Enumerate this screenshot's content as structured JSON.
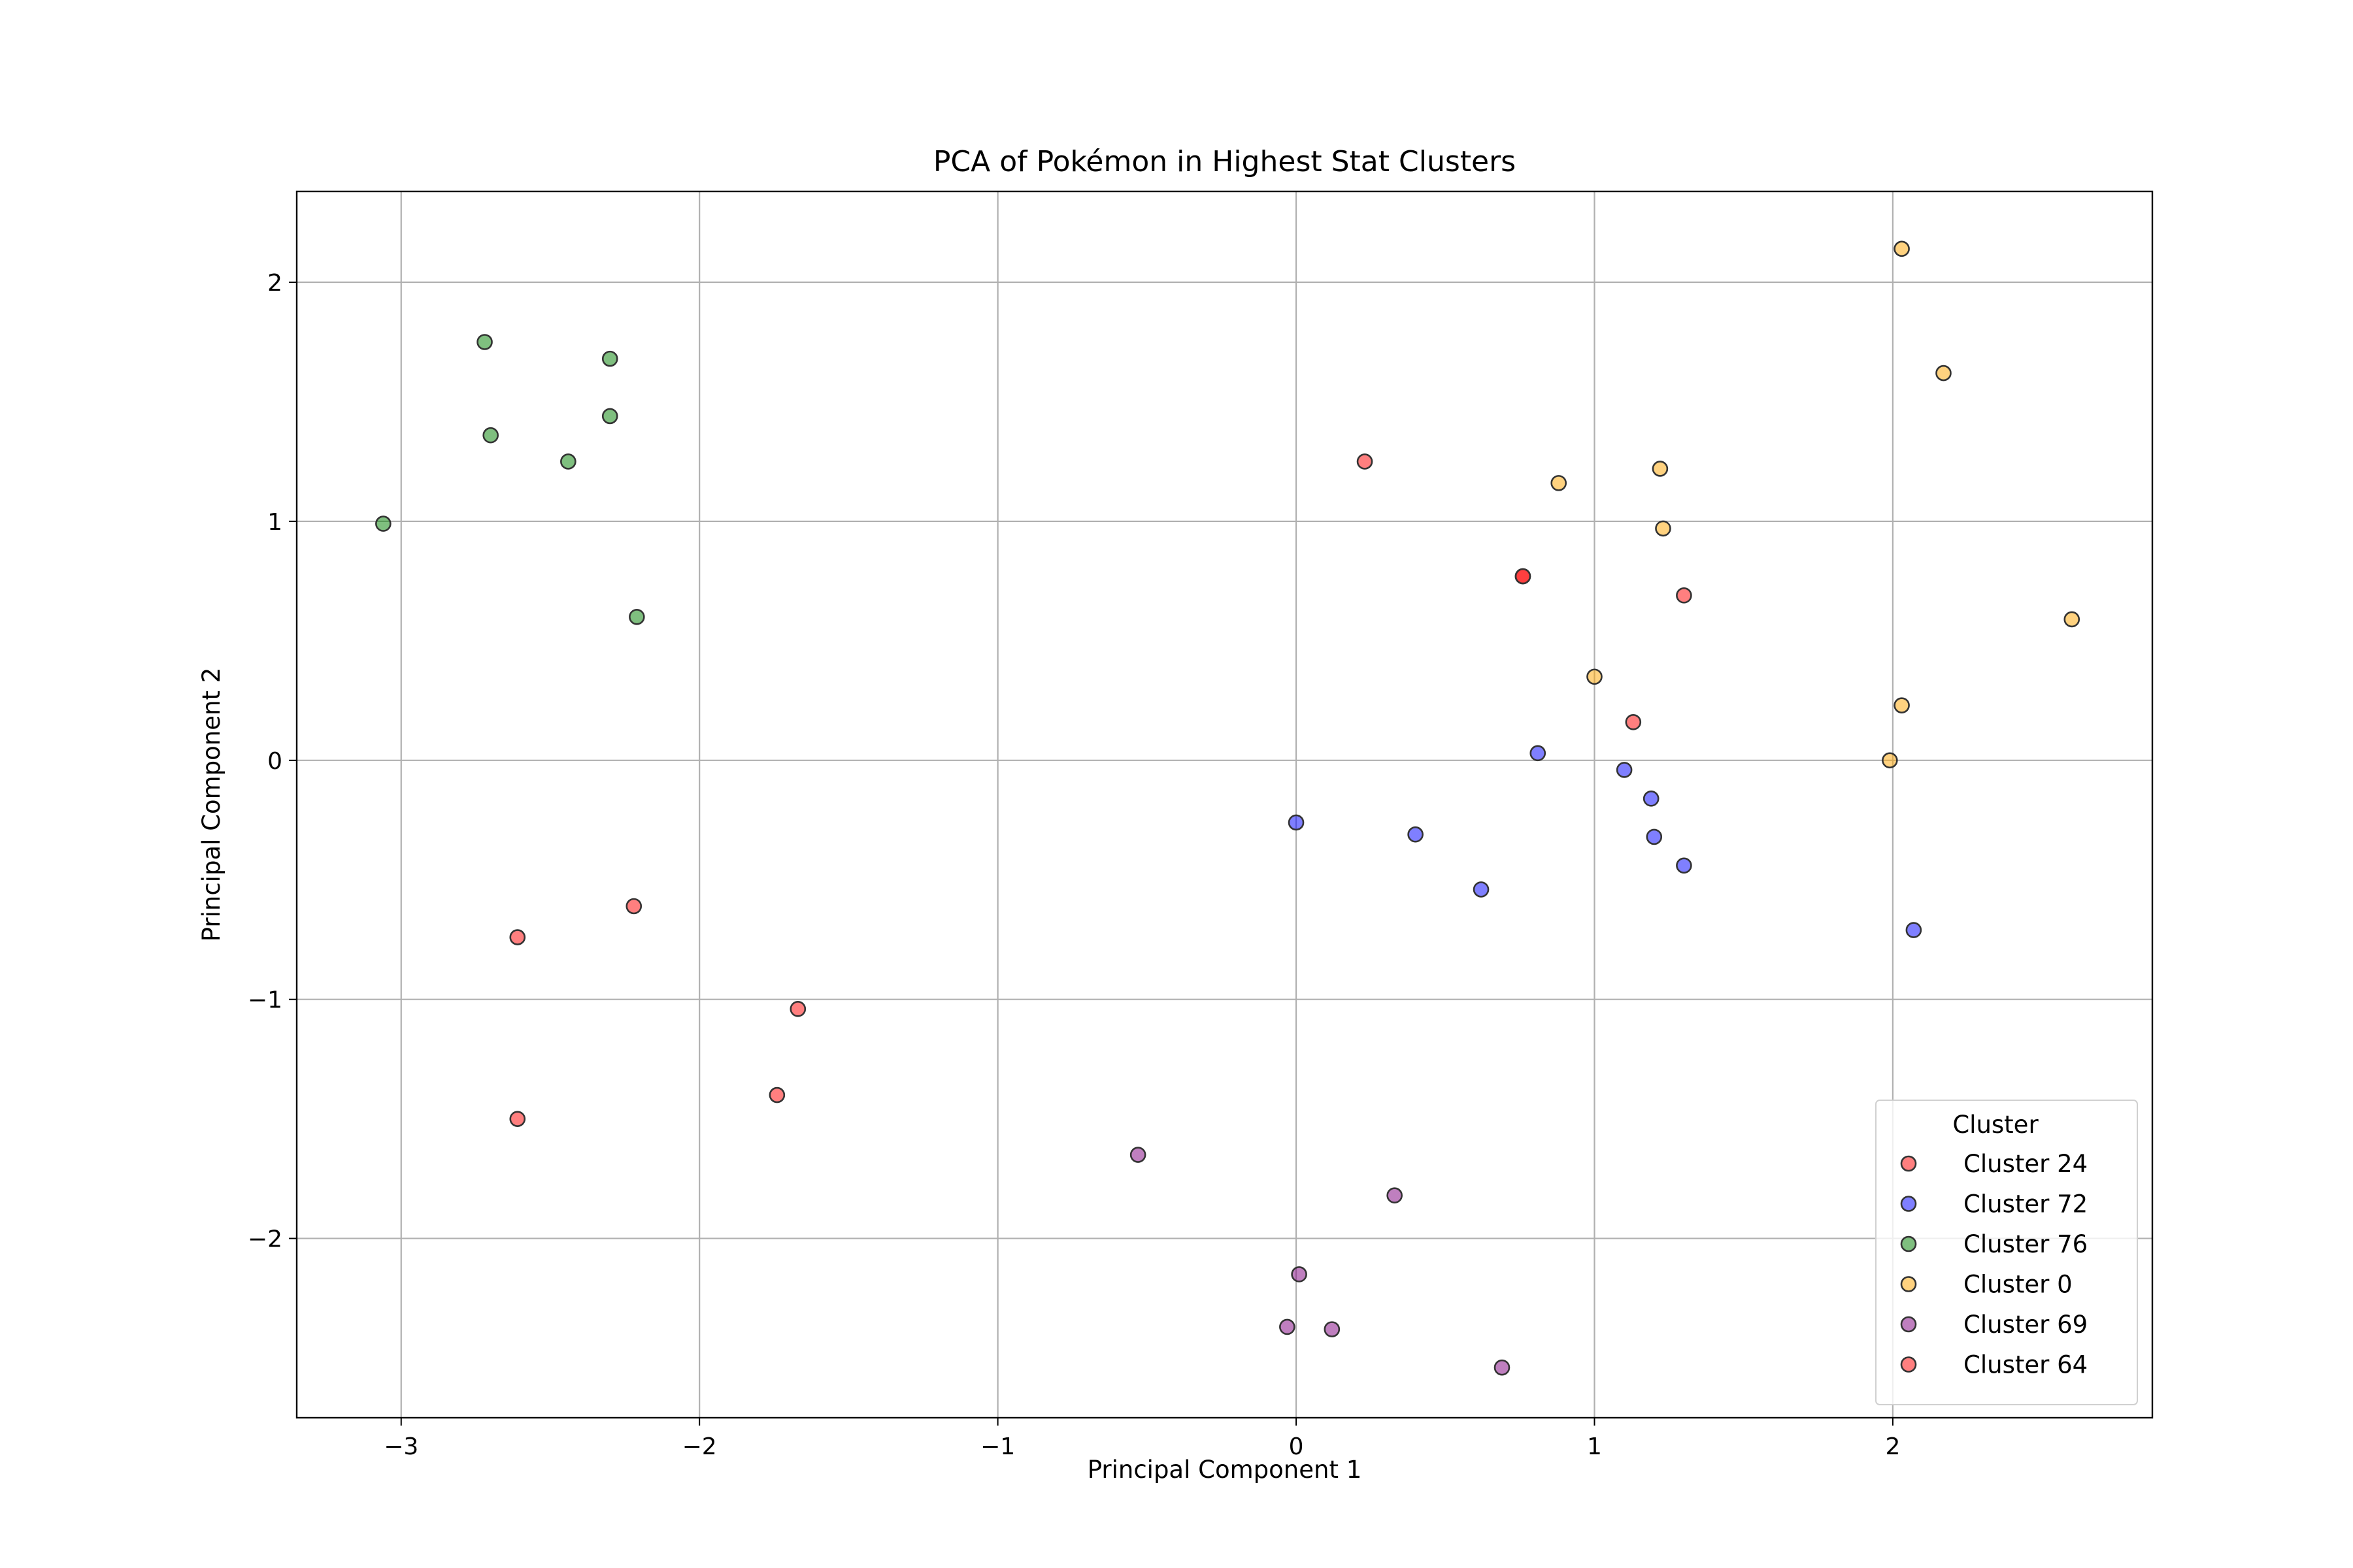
{
  "chart_data": {
    "type": "scatter",
    "title": "PCA of Pokémon in Highest Stat Clusters",
    "xlabel": "Principal Component 1",
    "ylabel": "Principal Component 2",
    "xlim": [
      -3.35,
      2.87
    ],
    "ylim": [
      -2.75,
      2.38
    ],
    "xticks": [
      -3,
      -2,
      -1,
      0,
      1,
      2
    ],
    "yticks": [
      -2,
      -1,
      0,
      1,
      2
    ],
    "xtick_labels": [
      "−3",
      "−2",
      "−1",
      "0",
      "1",
      "2"
    ],
    "ytick_labels": [
      "−2",
      "−1",
      "0",
      "1",
      "2"
    ],
    "grid": true,
    "legend": {
      "title": "Cluster",
      "placement": "lower-right"
    },
    "series": [
      {
        "name": "Cluster 24",
        "color": "#ff0000",
        "opacity": 0.5,
        "points": [
          [
            0.23,
            1.25
          ],
          [
            1.3,
            0.69
          ],
          [
            1.13,
            0.16
          ],
          [
            -2.22,
            -0.61
          ],
          [
            -2.61,
            -0.74
          ],
          [
            -1.67,
            -1.04
          ],
          [
            -1.74,
            -1.4
          ],
          [
            -2.61,
            -1.5
          ],
          [
            0.76,
            0.77
          ]
        ]
      },
      {
        "name": "Cluster 72",
        "color": "#0000ff",
        "opacity": 0.5,
        "points": [
          [
            0.81,
            0.03
          ],
          [
            1.1,
            -0.04
          ],
          [
            1.19,
            -0.16
          ],
          [
            1.2,
            -0.32
          ],
          [
            1.3,
            -0.44
          ],
          [
            0.0,
            -0.26
          ],
          [
            0.4,
            -0.31
          ],
          [
            0.62,
            -0.54
          ],
          [
            2.07,
            -0.71
          ]
        ]
      },
      {
        "name": "Cluster 76",
        "color": "#008000",
        "opacity": 0.5,
        "points": [
          [
            -2.72,
            1.75
          ],
          [
            -2.3,
            1.68
          ],
          [
            -2.3,
            1.44
          ],
          [
            -2.7,
            1.36
          ],
          [
            -2.44,
            1.25
          ],
          [
            -3.06,
            0.99
          ],
          [
            -2.21,
            0.6
          ]
        ]
      },
      {
        "name": "Cluster 0",
        "color": "#ffa500",
        "opacity": 0.5,
        "points": [
          [
            2.03,
            2.14
          ],
          [
            2.17,
            1.62
          ],
          [
            1.22,
            1.22
          ],
          [
            0.88,
            1.16
          ],
          [
            1.23,
            0.97
          ],
          [
            2.6,
            0.59
          ],
          [
            1.0,
            0.35
          ],
          [
            2.03,
            0.23
          ],
          [
            1.99,
            0.0
          ]
        ]
      },
      {
        "name": "Cluster 69",
        "color": "#800080",
        "opacity": 0.5,
        "points": [
          [
            -0.53,
            -1.65
          ],
          [
            0.33,
            -1.82
          ],
          [
            0.01,
            -2.15
          ],
          [
            -0.03,
            -2.37
          ],
          [
            0.12,
            -2.38
          ],
          [
            0.69,
            -2.54
          ]
        ]
      },
      {
        "name": "Cluster 64",
        "color": "#ff0000",
        "opacity": 0.5,
        "points": [
          [
            0.76,
            0.77
          ]
        ]
      }
    ]
  }
}
